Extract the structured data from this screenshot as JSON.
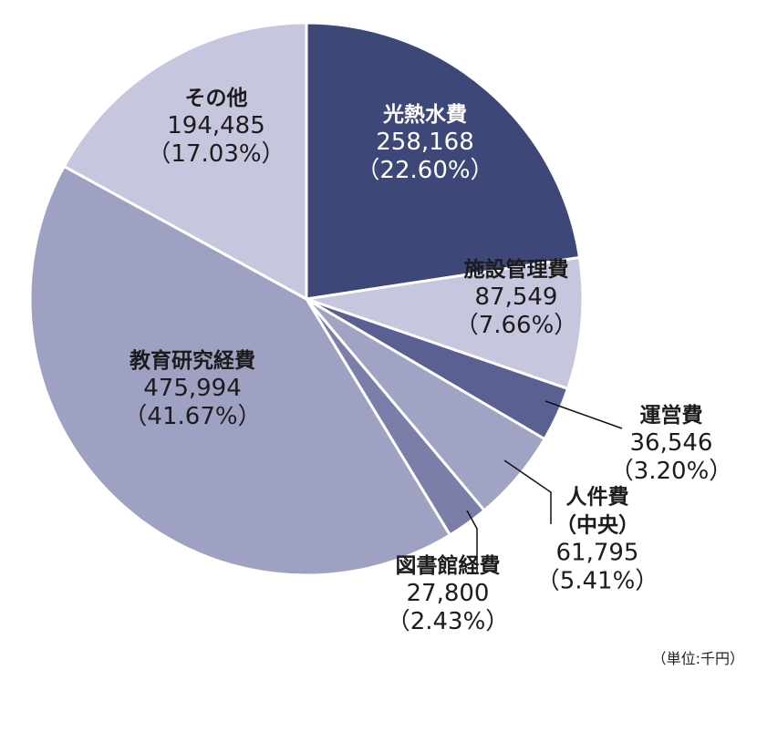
{
  "chart_data": {
    "type": "pie",
    "title": "",
    "unit_note": "（単位:千円）",
    "start_angle_deg": 0,
    "direction": "clockwise",
    "slices": [
      {
        "label": "光熱水費",
        "value": 258168,
        "value_text": "258,168",
        "percent_text": "（22.60%）",
        "color": "#3d4878",
        "text_color": "#ffffff"
      },
      {
        "label": "施設管理費",
        "value": 87549,
        "value_text": "87,549",
        "percent_text": "（7.66%）",
        "color": "#c6c7de",
        "text_color": "#1c1c1c"
      },
      {
        "label": "運営費",
        "value": 36546,
        "value_text": "36,546",
        "percent_text": "（3.20%）",
        "color": "#5b6092",
        "text_color": "#1c1c1c"
      },
      {
        "label": "人件費\n（中央）",
        "value": 61795,
        "value_text": "61,795",
        "percent_text": "（5.41%）",
        "color": "#a0a3c4",
        "text_color": "#1c1c1c"
      },
      {
        "label": "図書館経費",
        "value": 27800,
        "value_text": "27,800",
        "percent_text": "（2.43%）",
        "color": "#7a7ea8",
        "text_color": "#1c1c1c"
      },
      {
        "label": "教育研究経費",
        "value": 475994,
        "value_text": "475,994",
        "percent_text": "（41.67%）",
        "color": "#9ea1c2",
        "text_color": "#1c1c1c"
      },
      {
        "label": "その他",
        "value": 194485,
        "value_text": "194,485",
        "percent_text": "（17.03%）",
        "color": "#c6c7de",
        "text_color": "#1c1c1c"
      }
    ]
  }
}
